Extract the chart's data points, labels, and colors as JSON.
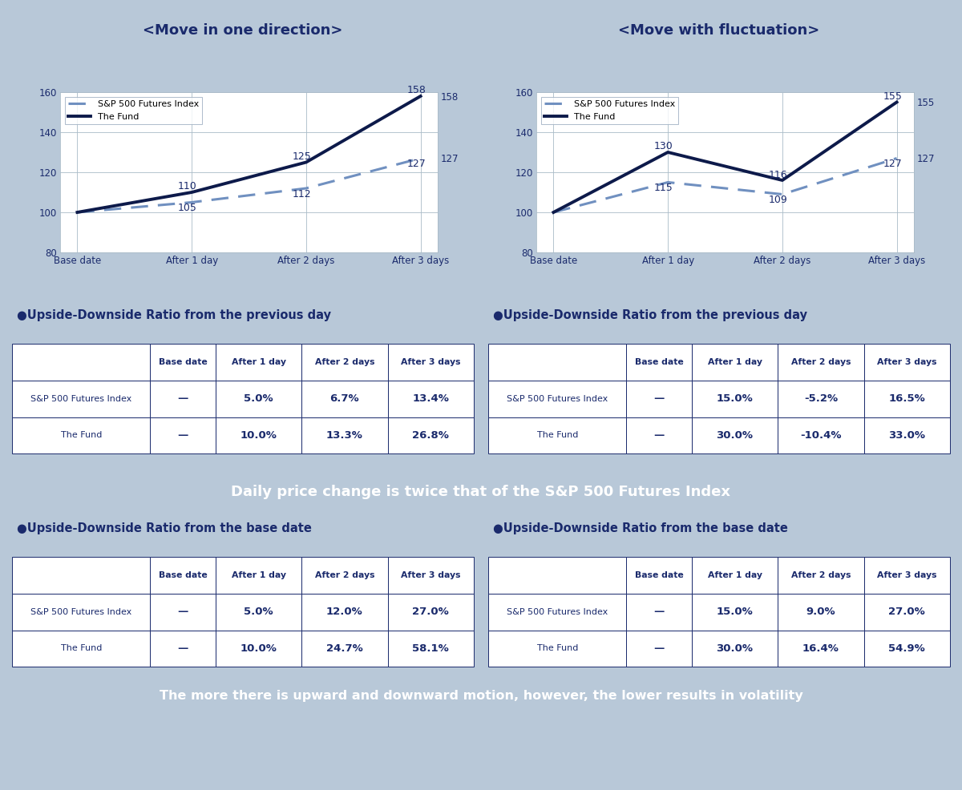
{
  "chart1_title": "<Move in one direction>",
  "chart2_title": "<Move with fluctuation>",
  "x_labels": [
    "Base date",
    "After 1 day",
    "After 2 days",
    "After 3 days"
  ],
  "chart1_index": [
    100,
    105,
    112,
    127
  ],
  "chart1_fund": [
    100,
    110,
    125,
    158
  ],
  "chart2_index": [
    100,
    115,
    109,
    127
  ],
  "chart2_fund": [
    100,
    130,
    116,
    155
  ],
  "ylim": [
    80,
    160
  ],
  "yticks": [
    80,
    100,
    120,
    140,
    160
  ],
  "line_color_index": "#7090C0",
  "line_color_fund": "#0d1a4a",
  "bg_color": "#b8c8d8",
  "panel_bg": "#c5d3e0",
  "chart_bg": "#ffffff",
  "border_color": "#1a2a6c",
  "dark_navy": "#0d1f4e",
  "banner_bg": "#0d2252",
  "banner_text": "#ffffff",
  "label_color": "#1a2a6c",
  "title_color": "#1a2a6c",
  "table1_prev_title": "●Upside-Downside Ratio from the previous day",
  "table2_prev_title": "●Upside-Downside Ratio from the previous day",
  "table1_base_title": "●Upside-Downside Ratio from the base date",
  "table2_base_title": "●Upside-Downside Ratio from the base date",
  "col_headers": [
    "",
    "Base date",
    "After 1 day",
    "After 2 days",
    "After 3 days"
  ],
  "table1_prev_rows": [
    [
      "S&P 500 Futures Index",
      "—",
      "5.0%",
      "6.7%",
      "13.4%"
    ],
    [
      "The Fund",
      "—",
      "10.0%",
      "13.3%",
      "26.8%"
    ]
  ],
  "table2_prev_rows": [
    [
      "S&P 500 Futures Index",
      "—",
      "15.0%",
      "-5.2%",
      "16.5%"
    ],
    [
      "The Fund",
      "—",
      "30.0%",
      "-10.4%",
      "33.0%"
    ]
  ],
  "table1_base_rows": [
    [
      "S&P 500 Futures Index",
      "—",
      "5.0%",
      "12.0%",
      "27.0%"
    ],
    [
      "The Fund",
      "—",
      "10.0%",
      "24.7%",
      "58.1%"
    ]
  ],
  "table2_base_rows": [
    [
      "S&P 500 Futures Index",
      "—",
      "15.0%",
      "9.0%",
      "27.0%"
    ],
    [
      "The Fund",
      "—",
      "30.0%",
      "16.4%",
      "54.9%"
    ]
  ],
  "middle_banner": "Daily price change is twice that of the S&P 500 Futures Index",
  "bottom_banner": "The more there is upward and downward motion, however, the lower results in volatility",
  "legend_index": "S&P 500 Futures Index",
  "legend_fund": "The Fund"
}
